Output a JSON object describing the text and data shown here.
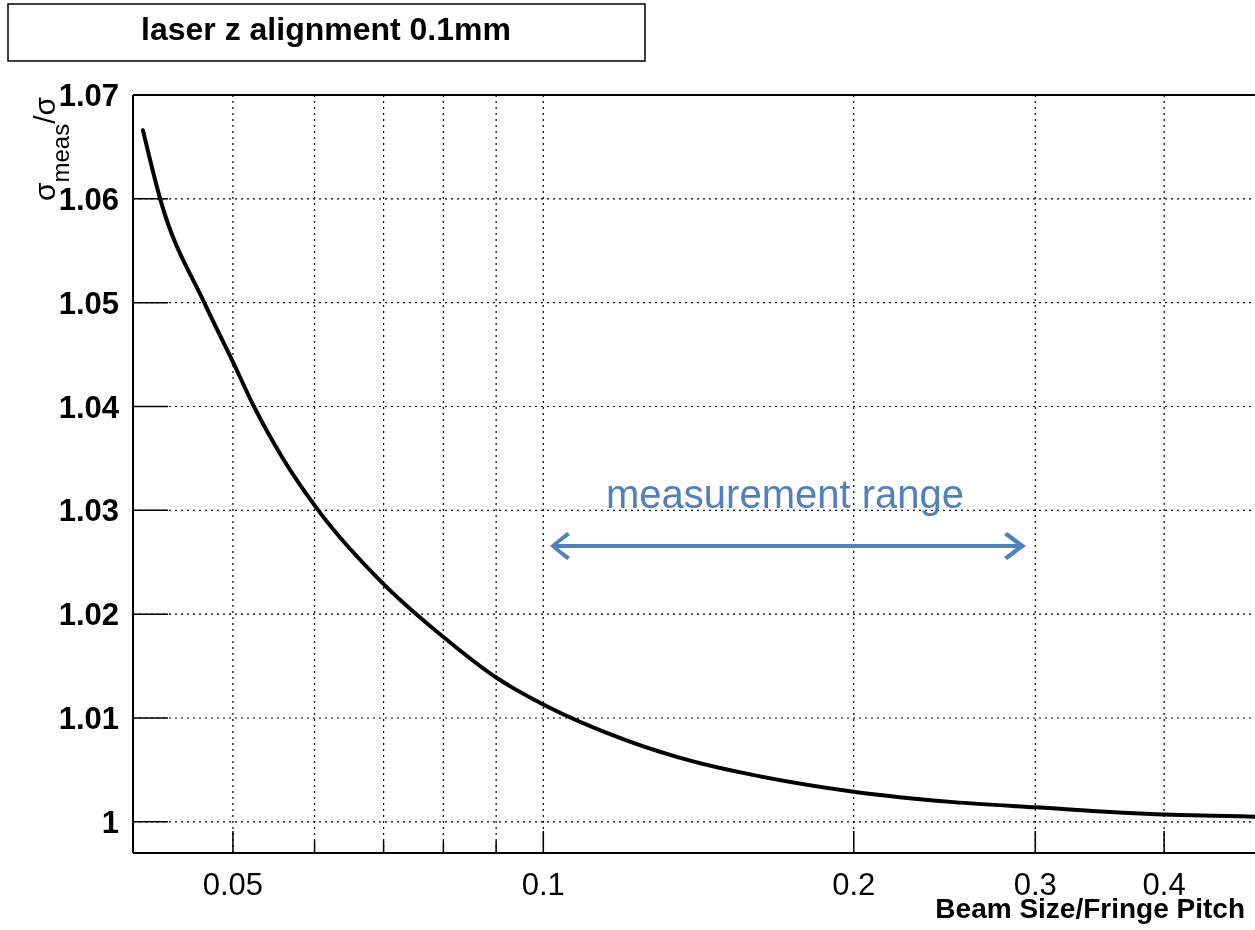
{
  "chart_data": {
    "type": "line",
    "title": "laser z alignment 0.1mm",
    "xlabel": "Beam Size/Fringe Pitch",
    "ylabel": "σ$_{meas}$/σ",
    "annotations": [
      "measurement range"
    ],
    "log": "x",
    "grid": true,
    "line_style": "solid",
    "marker": "none",
    "xlim": [
      0.04,
      0.49
    ],
    "ylim": [
      0.997,
      1.07
    ],
    "xticks": [
      0.05,
      {
        "value": 0.06,
        "label": null
      },
      {
        "value": 0.07,
        "label": null
      },
      {
        "value": 0.08,
        "label": null
      },
      {
        "value": 0.09,
        "label": null
      },
      0.1,
      0.2,
      0.3,
      0.4
    ],
    "yticks": [
      {
        "value": 1,
        "label": "1"
      },
      1.01,
      1.02,
      1.03,
      1.04,
      1.05,
      1.06,
      1.07
    ],
    "series": [
      {
        "color": "#000000",
        "x": [
          0.0409,
          0.0425,
          0.0469,
          0.05,
          0.0524,
          0.0559,
          0.0605,
          0.07,
          0.08,
          0.09,
          0.1,
          0.12,
          0.14,
          0.16,
          0.2,
          0.25,
          0.3,
          0.4,
          0.49
        ],
        "values": [
          1.0666,
          1.06,
          1.05,
          1.0443,
          1.04,
          1.035,
          1.03,
          1.0229,
          1.0178,
          1.0139,
          1.0113,
          1.0079,
          1.0058,
          1.0045,
          1.0029,
          1.0019,
          1.0014,
          1.0007,
          1.0005
        ]
      }
    ]
  }
}
